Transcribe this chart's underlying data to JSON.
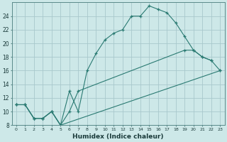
{
  "xlabel": "Humidex (Indice chaleur)",
  "bg_color": "#cde8e8",
  "grid_color": "#a8c8cc",
  "line_color": "#2a7a72",
  "xlim": [
    -0.5,
    23.5
  ],
  "ylim": [
    8,
    26
  ],
  "xticks": [
    0,
    1,
    2,
    3,
    4,
    5,
    6,
    7,
    8,
    9,
    10,
    11,
    12,
    13,
    14,
    15,
    16,
    17,
    18,
    19,
    20,
    21,
    22,
    23
  ],
  "yticks": [
    8,
    10,
    12,
    14,
    16,
    18,
    20,
    22,
    24
  ],
  "line1_x": [
    0,
    1,
    2,
    3,
    4,
    5,
    6,
    7,
    8,
    9,
    10,
    11,
    12,
    13,
    14,
    15,
    16,
    17,
    18,
    19,
    20,
    21,
    22
  ],
  "line1_y": [
    11,
    11,
    9,
    9,
    10,
    8,
    13,
    10,
    16,
    18.5,
    20.5,
    21.5,
    22,
    24,
    24,
    25.5,
    25,
    24.5,
    23,
    21,
    19,
    18,
    17.5
  ],
  "line2_x": [
    0,
    1,
    2,
    3,
    4,
    5,
    6,
    7,
    19,
    20,
    21,
    22,
    23
  ],
  "line2_y": [
    11,
    11,
    9,
    9,
    10,
    8,
    10,
    13,
    19,
    19,
    18,
    17.5,
    16
  ],
  "line3_x": [
    0,
    1,
    2,
    3,
    4,
    5,
    23
  ],
  "line3_y": [
    11,
    11,
    9,
    9,
    10,
    8,
    16
  ]
}
